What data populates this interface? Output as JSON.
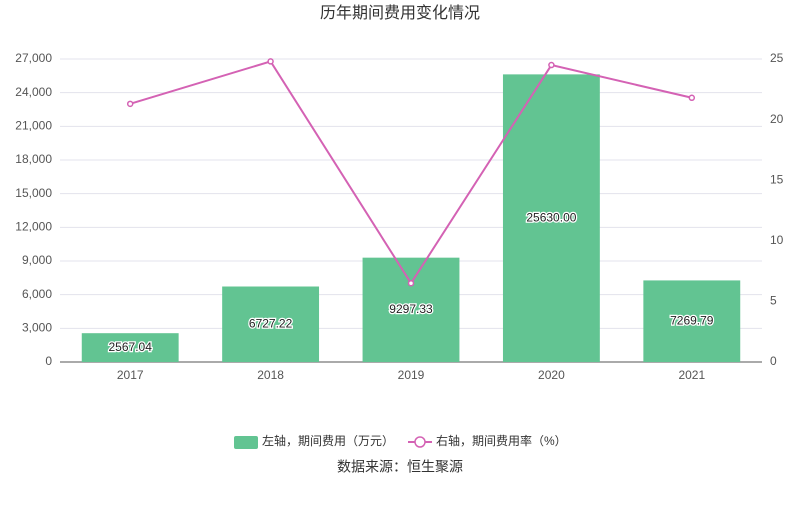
{
  "chart_data": {
    "type": "bar_line",
    "title": "历年期间费用变化情况",
    "source": "数据来源：恒生聚源",
    "categories": [
      "2017",
      "2018",
      "2019",
      "2020",
      "2021"
    ],
    "series": [
      {
        "name": "左轴，期间费用（万元）",
        "type": "bar",
        "color": "#62c492",
        "axis": "y",
        "values": [
          2567.04,
          6727.22,
          9297.33,
          25630.0,
          7269.79
        ],
        "value_labels": [
          "2567.04",
          "6727.22",
          "9297.33",
          "25630.00",
          "7269.79"
        ]
      },
      {
        "name": "右轴，期间费用率（%）",
        "type": "line",
        "color": "#d462b4",
        "axis": "y2",
        "values": [
          21.3,
          24.8,
          6.5,
          24.5,
          21.8
        ]
      }
    ],
    "ylim": [
      0,
      27000
    ],
    "yticks": [
      0,
      {
        "value": 3000,
        "label": "3,000"
      },
      {
        "value": 6000,
        "label": "6,000"
      },
      {
        "value": 9000,
        "label": "9,000"
      },
      {
        "value": 12000,
        "label": "12,000"
      },
      {
        "value": 15000,
        "label": "15,000"
      },
      {
        "value": 18000,
        "label": "18,000"
      },
      {
        "value": 21000,
        "label": "21,000"
      },
      {
        "value": 24000,
        "label": "24,000"
      },
      {
        "value": 27000,
        "label": "27,000"
      }
    ],
    "y2lim": [
      0,
      25
    ],
    "y2ticks": [
      0,
      5,
      10,
      15,
      20,
      25
    ],
    "grid": true
  }
}
